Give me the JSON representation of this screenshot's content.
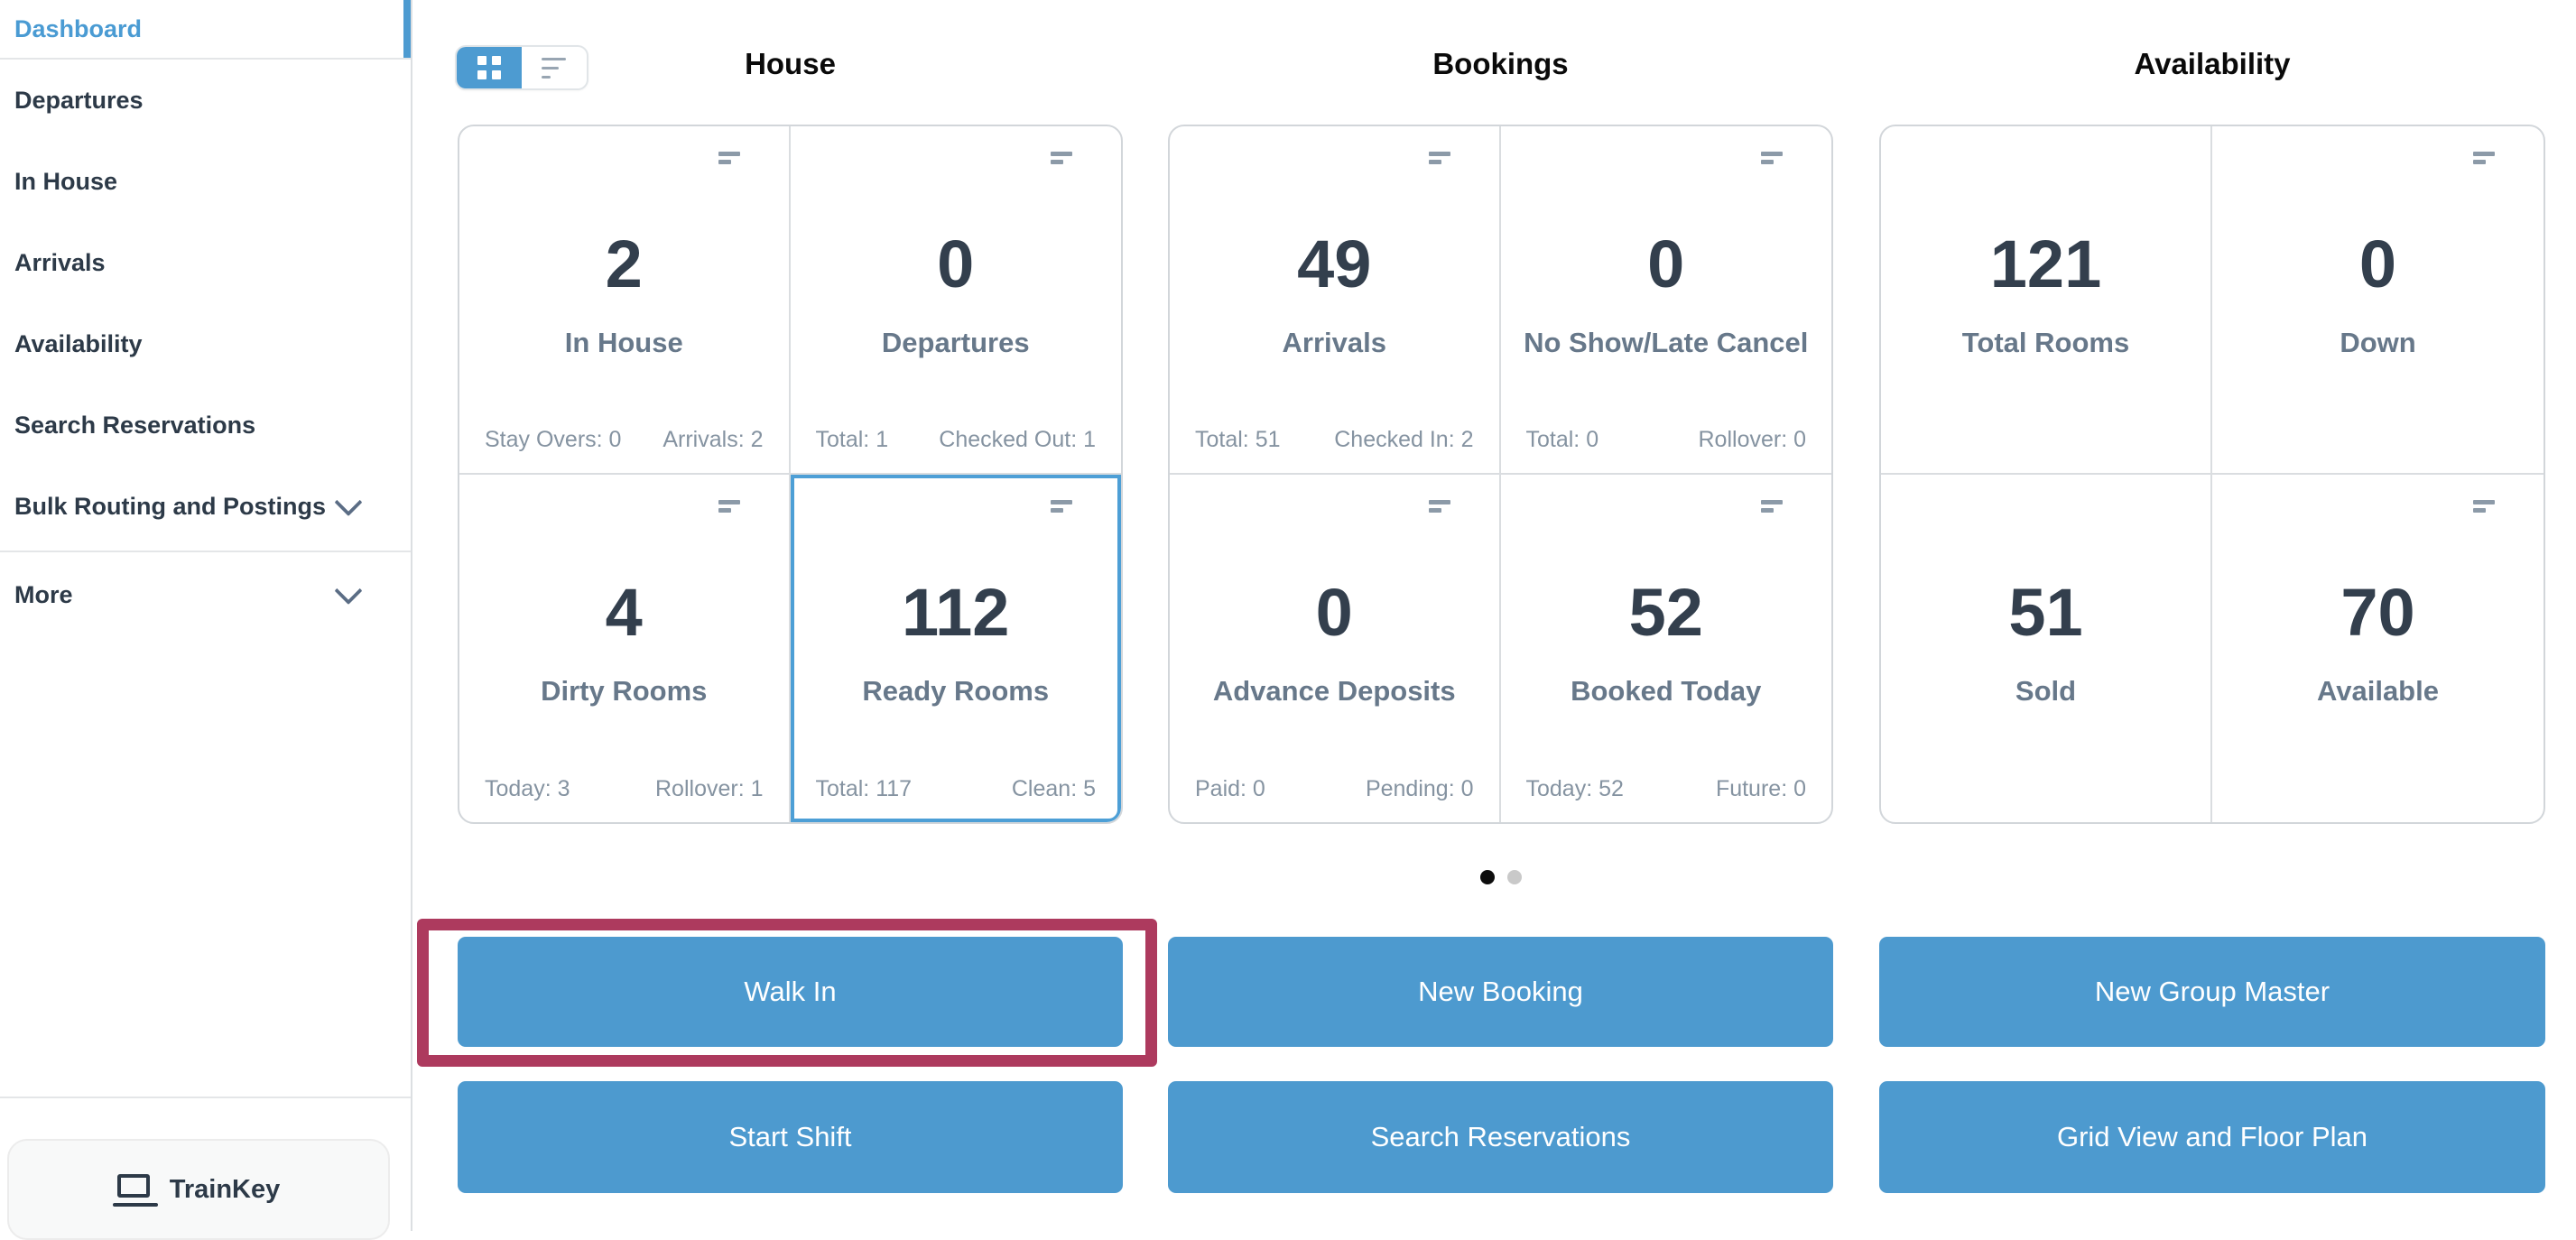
{
  "sidebar": {
    "active_item": "Dashboard",
    "items": [
      "Departures",
      "In House",
      "Arrivals",
      "Availability",
      "Search Reservations"
    ],
    "expandable": [
      "Bulk Routing and Postings",
      "More"
    ],
    "trainkey_label": "TrainKey"
  },
  "view_toggle": {
    "active": "grid"
  },
  "sections": [
    {
      "title": "House",
      "cards": [
        {
          "value": "2",
          "label": "In House",
          "stat_left": "Stay Overs: 0",
          "stat_right": "Arrivals: 2"
        },
        {
          "value": "0",
          "label": "Departures",
          "stat_left": "Total: 1",
          "stat_right": "Checked Out: 1"
        },
        {
          "value": "4",
          "label": "Dirty Rooms",
          "stat_left": "Today: 3",
          "stat_right": "Rollover: 1"
        },
        {
          "value": "112",
          "label": "Ready Rooms",
          "stat_left": "Total: 117",
          "stat_right": "Clean: 5",
          "selected": true
        }
      ]
    },
    {
      "title": "Bookings",
      "cards": [
        {
          "value": "49",
          "label": "Arrivals",
          "stat_left": "Total: 51",
          "stat_right": "Checked In: 2"
        },
        {
          "value": "0",
          "label": "No Show/Late Cancel",
          "stat_left": "Total: 0",
          "stat_right": "Rollover: 0"
        },
        {
          "value": "0",
          "label": "Advance Deposits",
          "stat_left": "Paid: 0",
          "stat_right": "Pending: 0"
        },
        {
          "value": "52",
          "label": "Booked Today",
          "stat_left": "Today: 52",
          "stat_right": "Future: 0"
        }
      ]
    },
    {
      "title": "Availability",
      "cards": [
        {
          "value": "121",
          "label": "Total Rooms"
        },
        {
          "value": "0",
          "label": "Down"
        },
        {
          "value": "51",
          "label": "Sold"
        },
        {
          "value": "70",
          "label": "Available"
        }
      ]
    }
  ],
  "pagination": {
    "pages": 2,
    "active_page": 1
  },
  "buttons": {
    "walk_in": "Walk In",
    "start_shift": "Start Shift",
    "new_booking": "New Booking",
    "search_reservations": "Search Reservations",
    "new_group_master": "New Group Master",
    "grid_view_floor_plan": "Grid View and Floor Plan",
    "highlighted": "Walk In"
  },
  "colors": {
    "accent_blue": "#4d9bd1",
    "highlight_red": "#ad3a5e",
    "number_text": "#333f4d",
    "label_text": "#67788a",
    "stat_text": "#8593a1"
  }
}
